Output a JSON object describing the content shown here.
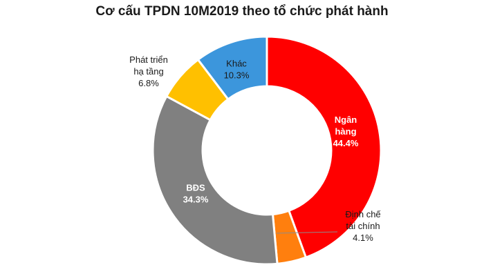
{
  "chart_data": {
    "type": "pie",
    "subtype": "donut",
    "title": "Cơ cấu TPDN 10M2019 theo tổ chức phát hành",
    "start_angle_deg": 0,
    "direction": "clockwise",
    "slices": [
      {
        "label_lines": [
          "Ngân",
          "hàng"
        ],
        "value": 44.4,
        "value_label": "44.4%",
        "color": "#ff0000",
        "label_color": "#ffffff",
        "label_bold": true
      },
      {
        "label_lines": [
          "Định chế",
          "tài chính"
        ],
        "value": 4.1,
        "value_label": "4.1%",
        "color": "#ff7f0e",
        "label_color": "#1a1a1a",
        "label_bold": false,
        "leader_line": true
      },
      {
        "label_lines": [
          "BĐS"
        ],
        "value": 34.3,
        "value_label": "34.3%",
        "color": "#808080",
        "label_color": "#ffffff",
        "label_bold": true
      },
      {
        "label_lines": [
          "Phát triển",
          "hạ tầng"
        ],
        "value": 6.8,
        "value_label": "6.8%",
        "color": "#ffc000",
        "label_color": "#1a1a1a",
        "label_bold": false
      },
      {
        "label_lines": [
          "Khác"
        ],
        "value": 10.3,
        "value_label": "10.3%",
        "color": "#3c96dc",
        "label_color": "#1a1a1a",
        "label_bold": false
      }
    ]
  }
}
